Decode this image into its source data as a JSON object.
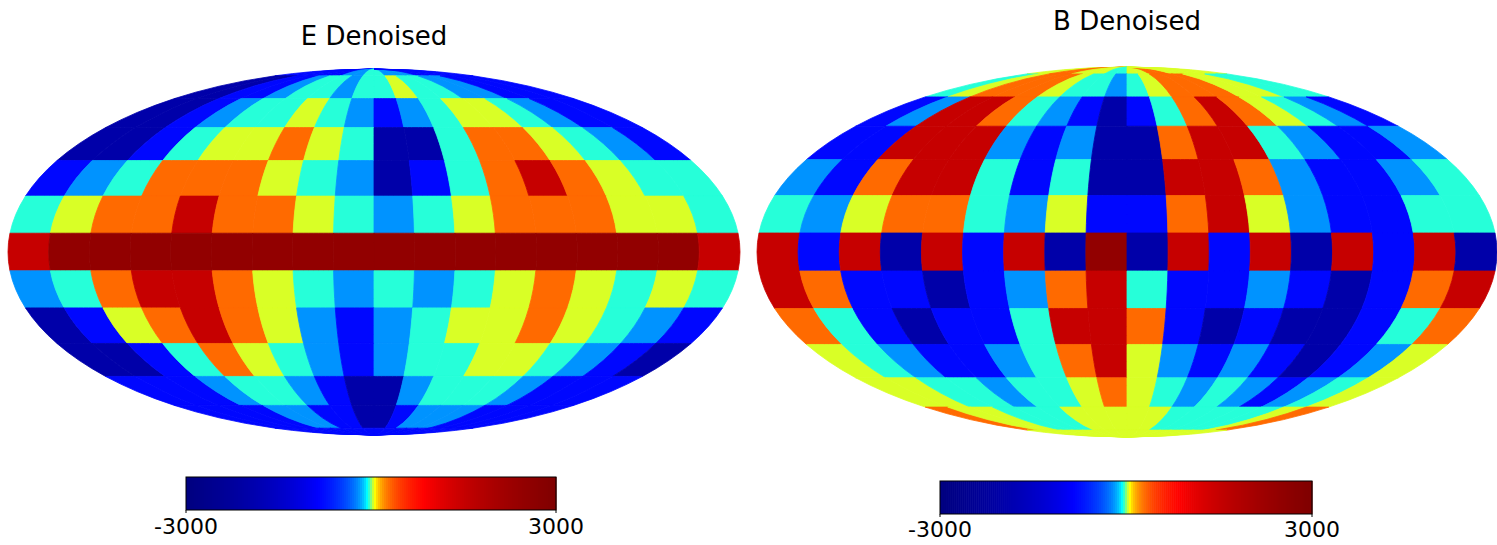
{
  "chart_data": [
    {
      "type": "heatmap",
      "title": "E Denoised",
      "lon_edges": [
        180,
        160,
        140,
        120,
        100,
        80,
        60,
        40,
        20,
        0,
        -20,
        -40,
        -60,
        -80,
        -100,
        -120,
        -140,
        -160,
        -180
      ],
      "lat_edges": [
        90,
        82.5,
        67.5,
        52.5,
        37.5,
        22.5,
        7.5,
        -7.5,
        -22.5,
        -37.5,
        -52.5,
        -67.5,
        -82.5,
        -90
      ],
      "cells": [
        [
          -800,
          -800,
          -800,
          -800,
          -800,
          -800,
          -200,
          -200,
          -40,
          -40,
          -200,
          -200,
          -200,
          -800,
          -800,
          -800,
          -800,
          -800
        ],
        [
          -2000,
          -2000,
          -800,
          -800,
          -200,
          -40,
          -40,
          -200,
          -40,
          -40,
          40,
          -40,
          -40,
          -200,
          -200,
          -800,
          -800,
          -800
        ],
        [
          -2000,
          -2000,
          -800,
          -200,
          -40,
          -40,
          40,
          -40,
          -200,
          -800,
          -200,
          -40,
          40,
          40,
          -40,
          -200,
          -800,
          -800
        ],
        [
          -2000,
          -2000,
          -800,
          -40,
          40,
          40,
          300,
          40,
          -40,
          -2000,
          -2000,
          -40,
          300,
          300,
          40,
          -40,
          -200,
          -800
        ],
        [
          -800,
          -200,
          -40,
          300,
          300,
          300,
          40,
          -40,
          -200,
          -2000,
          -800,
          -40,
          300,
          1500,
          300,
          40,
          -40,
          -40
        ],
        [
          -40,
          40,
          300,
          300,
          1500,
          300,
          300,
          40,
          -40,
          -200,
          -40,
          40,
          300,
          300,
          300,
          40,
          40,
          -40
        ],
        [
          1500,
          2500,
          2500,
          2500,
          2500,
          2500,
          2500,
          2500,
          2500,
          2500,
          2500,
          2500,
          2500,
          2500,
          2500,
          2500,
          2500,
          1500
        ],
        [
          -200,
          -40,
          300,
          1500,
          1500,
          300,
          40,
          -40,
          -200,
          -40,
          -200,
          -40,
          40,
          300,
          40,
          -40,
          40,
          -40
        ],
        [
          -2000,
          -800,
          40,
          300,
          1500,
          300,
          40,
          -200,
          -800,
          -200,
          -40,
          40,
          40,
          300,
          40,
          -40,
          -200,
          -800
        ],
        [
          -2000,
          -2000,
          -800,
          -40,
          300,
          40,
          -40,
          -200,
          -800,
          -200,
          -40,
          -40,
          40,
          40,
          -40,
          -200,
          -800,
          -2000
        ],
        [
          -800,
          -800,
          -800,
          -200,
          -40,
          -40,
          -200,
          -800,
          -2000,
          -2000,
          -200,
          -40,
          -40,
          -40,
          -200,
          -800,
          -800,
          -800
        ],
        [
          -800,
          -800,
          -800,
          -800,
          -200,
          -200,
          -800,
          -800,
          -2000,
          -2000,
          -800,
          -200,
          -200,
          -200,
          -800,
          -800,
          -800,
          -800
        ],
        [
          -800,
          -800,
          -800,
          -800,
          -800,
          -800,
          -800,
          -800,
          -800,
          -800,
          -800,
          -800,
          -800,
          -800,
          -800,
          -800,
          -800,
          -800
        ]
      ],
      "colorbar": {
        "range": [
          -3000,
          3000
        ],
        "ticks": [
          -3000,
          3000
        ]
      }
    },
    {
      "type": "heatmap",
      "title": "B Denoised",
      "lon_edges": [
        180,
        160,
        140,
        120,
        100,
        80,
        60,
        40,
        20,
        0,
        -20,
        -40,
        -60,
        -80,
        -100,
        -120,
        -140,
        -160,
        -180
      ],
      "lat_edges": [
        90,
        82.5,
        67.5,
        52.5,
        37.5,
        22.5,
        7.5,
        -7.5,
        -22.5,
        -37.5,
        -52.5,
        -67.5,
        -82.5,
        -90
      ],
      "cells": [
        [
          40,
          40,
          300,
          300,
          40,
          40,
          40,
          -40,
          -40,
          40,
          40,
          300,
          300,
          40,
          40,
          40,
          40,
          40
        ],
        [
          -40,
          40,
          300,
          300,
          300,
          40,
          -40,
          -40,
          -200,
          -40,
          40,
          300,
          300,
          300,
          40,
          40,
          -40,
          -40
        ],
        [
          -800,
          -200,
          1500,
          1500,
          300,
          -40,
          -200,
          -800,
          -2000,
          -800,
          -40,
          300,
          1500,
          300,
          40,
          -40,
          -200,
          -800
        ],
        [
          -800,
          -800,
          1500,
          1500,
          1500,
          -200,
          -800,
          -200,
          -2000,
          -2000,
          300,
          1500,
          1500,
          -40,
          -200,
          -800,
          -800,
          -200
        ],
        [
          -200,
          -800,
          300,
          1500,
          1500,
          -40,
          -800,
          -40,
          -2000,
          -2000,
          1500,
          1500,
          300,
          -200,
          -800,
          -800,
          -200,
          -40
        ],
        [
          -40,
          -200,
          40,
          300,
          300,
          -40,
          -200,
          40,
          -800,
          -800,
          300,
          1500,
          40,
          -200,
          -800,
          -800,
          -40,
          -40
        ],
        [
          1500,
          -800,
          1500,
          -2000,
          1500,
          -800,
          1500,
          -2000,
          2500,
          -2000,
          1500,
          -800,
          1500,
          -2000,
          1500,
          -800,
          1500,
          -2000
        ],
        [
          1500,
          300,
          -800,
          -800,
          -2000,
          -800,
          -200,
          300,
          1500,
          -40,
          -800,
          -800,
          -200,
          -800,
          -2000,
          -800,
          300,
          1500
        ],
        [
          300,
          -40,
          -800,
          -2000,
          -800,
          -800,
          -40,
          1500,
          1500,
          300,
          -800,
          -2000,
          -800,
          -2000,
          -2000,
          -800,
          -40,
          300
        ],
        [
          40,
          -40,
          -200,
          -800,
          -800,
          -200,
          -40,
          300,
          1500,
          40,
          -200,
          -800,
          -200,
          -800,
          -2000,
          -800,
          -200,
          40
        ],
        [
          40,
          40,
          -40,
          -40,
          -200,
          -40,
          -40,
          40,
          300,
          40,
          -40,
          -200,
          -40,
          -200,
          -800,
          -200,
          -40,
          40
        ],
        [
          300,
          40,
          40,
          -40,
          -40,
          -40,
          40,
          40,
          40,
          40,
          40,
          -40,
          -40,
          -40,
          -40,
          -40,
          40,
          300
        ],
        [
          40,
          40,
          40,
          40,
          40,
          40,
          40,
          40,
          40,
          40,
          40,
          40,
          40,
          40,
          40,
          40,
          40,
          40
        ]
      ],
      "colorbar": {
        "range": [
          -3000,
          3000
        ],
        "ticks": [
          -3000,
          3000
        ]
      }
    }
  ]
}
